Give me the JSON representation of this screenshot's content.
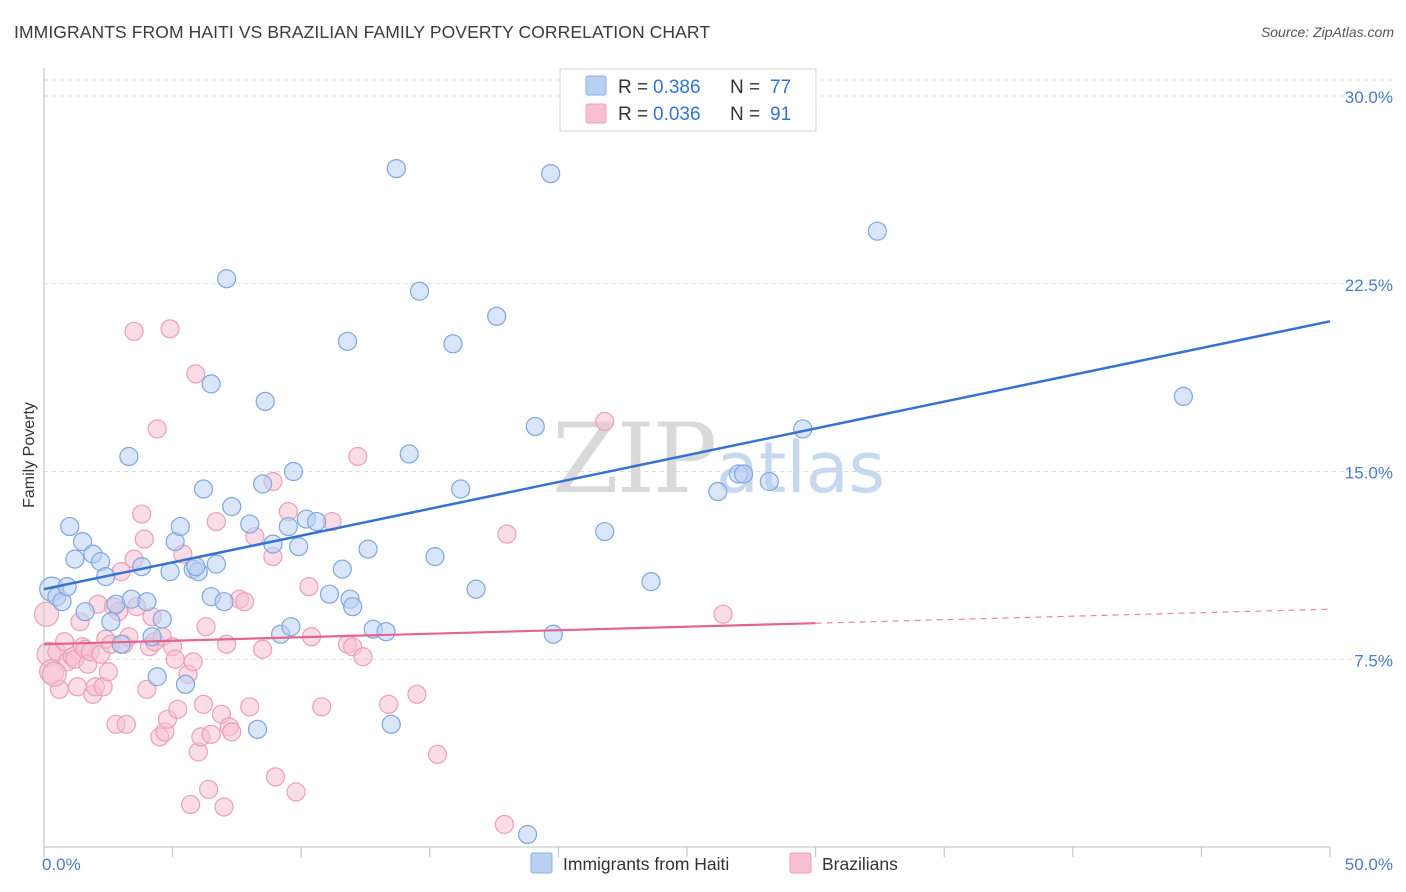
{
  "title": "IMMIGRANTS FROM HAITI VS BRAZILIAN FAMILY POVERTY CORRELATION CHART",
  "source": "Source: ZipAtlas.com",
  "watermark": {
    "zip": "ZIP",
    "atlas": "atlas"
  },
  "colors": {
    "blue": "#3573d1",
    "blue_fill": "#b9d0f2",
    "pink": "#e36592",
    "pink_fill": "#f6c0d2",
    "grid": "#dcdcdc",
    "tick_text": "#4a7cc9"
  },
  "legend": {
    "rows": [
      {
        "r_label": "R =",
        "r_value": "0.386",
        "n_label": "N =",
        "n_value": "77"
      },
      {
        "r_label": "R =",
        "r_value": "0.036",
        "n_label": "N =",
        "n_value": "91"
      }
    ]
  },
  "bottom_legend": [
    "Immigrants from Haiti",
    "Brazilians"
  ],
  "chart_data": {
    "type": "scatter",
    "ylabel": "Family Poverty",
    "xlabel": "",
    "xlim": [
      0,
      50
    ],
    "ylim": [
      0,
      31
    ],
    "x_tick_labels": [
      {
        "value": 0,
        "label": "0.0%"
      },
      {
        "value": 50,
        "label": "50.0%"
      }
    ],
    "y_tick_labels": [
      {
        "value": 7.5,
        "label": "7.5%"
      },
      {
        "value": 15.0,
        "label": "15.0%"
      },
      {
        "value": 22.5,
        "label": "22.5%"
      },
      {
        "value": 30.0,
        "label": "30.0%"
      }
    ],
    "grid": true,
    "legend_position": "top-center",
    "series": [
      {
        "name": "Immigrants from Haiti",
        "trend": {
          "x": [
            0,
            50
          ],
          "y": [
            10.3,
            21.0
          ],
          "dashed_from": null
        },
        "points": [
          [
            0.3,
            10.3
          ],
          [
            0.5,
            10.0
          ],
          [
            0.7,
            9.8
          ],
          [
            0.9,
            10.4
          ],
          [
            1.0,
            12.8
          ],
          [
            1.2,
            11.5
          ],
          [
            1.5,
            12.2
          ],
          [
            1.6,
            9.4
          ],
          [
            1.9,
            11.7
          ],
          [
            2.2,
            11.4
          ],
          [
            2.4,
            10.8
          ],
          [
            2.6,
            9.0
          ],
          [
            2.8,
            9.7
          ],
          [
            3.0,
            8.1
          ],
          [
            3.4,
            9.9
          ],
          [
            3.8,
            11.2
          ],
          [
            4.0,
            9.8
          ],
          [
            4.2,
            8.4
          ],
          [
            4.4,
            6.8
          ],
          [
            4.6,
            9.1
          ],
          [
            4.9,
            11.0
          ],
          [
            5.1,
            12.2
          ],
          [
            5.3,
            12.8
          ],
          [
            5.5,
            6.5
          ],
          [
            5.8,
            11.1
          ],
          [
            6.0,
            11.0
          ],
          [
            6.2,
            14.3
          ],
          [
            6.5,
            10.0
          ],
          [
            6.7,
            11.3
          ],
          [
            6.5,
            18.5
          ],
          [
            7.0,
            9.8
          ],
          [
            7.1,
            22.7
          ],
          [
            7.3,
            13.6
          ],
          [
            8.0,
            12.9
          ],
          [
            8.3,
            4.7
          ],
          [
            8.5,
            14.5
          ],
          [
            8.6,
            17.8
          ],
          [
            8.9,
            12.1
          ],
          [
            9.2,
            8.5
          ],
          [
            9.5,
            12.8
          ],
          [
            9.6,
            8.8
          ],
          [
            9.7,
            15.0
          ],
          [
            9.9,
            12.0
          ],
          [
            10.2,
            13.1
          ],
          [
            10.6,
            13.0
          ],
          [
            11.1,
            10.1
          ],
          [
            11.6,
            11.1
          ],
          [
            11.8,
            20.2
          ],
          [
            11.9,
            9.9
          ],
          [
            12.0,
            9.6
          ],
          [
            12.6,
            11.9
          ],
          [
            12.8,
            8.7
          ],
          [
            13.3,
            8.6
          ],
          [
            13.5,
            4.9
          ],
          [
            13.7,
            27.1
          ],
          [
            14.2,
            15.7
          ],
          [
            14.6,
            22.2
          ],
          [
            15.2,
            11.6
          ],
          [
            15.9,
            20.1
          ],
          [
            16.2,
            14.3
          ],
          [
            16.8,
            10.3
          ],
          [
            17.6,
            21.2
          ],
          [
            18.8,
            0.5
          ],
          [
            19.1,
            16.8
          ],
          [
            19.7,
            26.9
          ],
          [
            19.8,
            8.5
          ],
          [
            21.8,
            12.6
          ],
          [
            23.6,
            10.6
          ],
          [
            26.2,
            14.2
          ],
          [
            27.0,
            14.9
          ],
          [
            27.2,
            14.9
          ],
          [
            28.2,
            14.6
          ],
          [
            29.5,
            16.7
          ],
          [
            32.4,
            24.6
          ],
          [
            44.3,
            18.0
          ],
          [
            3.3,
            15.6
          ],
          [
            5.9,
            11.2
          ]
        ]
      },
      {
        "name": "Brazilians",
        "trend": {
          "x": [
            0,
            50
          ],
          "y": [
            8.1,
            9.5
          ],
          "dashed_from": 30
        },
        "points": [
          [
            0.1,
            9.3
          ],
          [
            0.2,
            7.7
          ],
          [
            0.3,
            7.0
          ],
          [
            0.5,
            7.8
          ],
          [
            0.6,
            6.3
          ],
          [
            0.8,
            8.2
          ],
          [
            0.9,
            7.4
          ],
          [
            1.1,
            7.6
          ],
          [
            1.2,
            7.5
          ],
          [
            1.3,
            6.4
          ],
          [
            1.4,
            9.0
          ],
          [
            1.5,
            8.0
          ],
          [
            1.6,
            7.9
          ],
          [
            1.7,
            7.3
          ],
          [
            1.8,
            7.8
          ],
          [
            1.9,
            6.1
          ],
          [
            2.0,
            6.4
          ],
          [
            2.1,
            9.7
          ],
          [
            2.2,
            7.7
          ],
          [
            2.3,
            6.4
          ],
          [
            2.4,
            8.3
          ],
          [
            2.5,
            7.0
          ],
          [
            2.6,
            8.1
          ],
          [
            2.7,
            9.6
          ],
          [
            2.8,
            4.9
          ],
          [
            2.9,
            9.4
          ],
          [
            3.0,
            11.0
          ],
          [
            3.1,
            8.1
          ],
          [
            3.2,
            4.9
          ],
          [
            3.3,
            8.4
          ],
          [
            3.5,
            20.6
          ],
          [
            3.5,
            11.5
          ],
          [
            3.6,
            9.6
          ],
          [
            3.8,
            13.3
          ],
          [
            3.9,
            12.3
          ],
          [
            4.0,
            6.3
          ],
          [
            4.1,
            8.0
          ],
          [
            4.2,
            9.2
          ],
          [
            4.3,
            8.2
          ],
          [
            4.4,
            16.7
          ],
          [
            4.5,
            4.4
          ],
          [
            4.6,
            8.4
          ],
          [
            4.7,
            4.6
          ],
          [
            4.8,
            5.1
          ],
          [
            4.9,
            20.7
          ],
          [
            5.0,
            8.0
          ],
          [
            5.1,
            7.5
          ],
          [
            5.2,
            5.5
          ],
          [
            5.4,
            11.7
          ],
          [
            5.6,
            6.9
          ],
          [
            5.7,
            1.7
          ],
          [
            5.8,
            7.4
          ],
          [
            5.9,
            18.9
          ],
          [
            6.0,
            3.8
          ],
          [
            6.1,
            4.4
          ],
          [
            6.2,
            5.7
          ],
          [
            6.3,
            8.8
          ],
          [
            6.4,
            2.3
          ],
          [
            6.5,
            4.5
          ],
          [
            6.7,
            13.0
          ],
          [
            6.9,
            5.3
          ],
          [
            7.0,
            1.6
          ],
          [
            7.1,
            8.1
          ],
          [
            7.2,
            4.8
          ],
          [
            7.3,
            4.6
          ],
          [
            7.6,
            9.9
          ],
          [
            7.8,
            9.8
          ],
          [
            8.0,
            5.6
          ],
          [
            8.2,
            12.4
          ],
          [
            8.5,
            7.9
          ],
          [
            8.9,
            11.6
          ],
          [
            8.9,
            14.6
          ],
          [
            9.0,
            2.8
          ],
          [
            9.5,
            13.4
          ],
          [
            9.8,
            2.2
          ],
          [
            10.3,
            10.4
          ],
          [
            10.4,
            8.4
          ],
          [
            10.8,
            5.6
          ],
          [
            11.2,
            13.0
          ],
          [
            11.8,
            8.1
          ],
          [
            12.0,
            8.0
          ],
          [
            12.2,
            15.6
          ],
          [
            12.4,
            7.6
          ],
          [
            13.4,
            5.7
          ],
          [
            14.5,
            6.1
          ],
          [
            15.3,
            3.7
          ],
          [
            17.9,
            0.9
          ],
          [
            18.0,
            12.5
          ],
          [
            21.8,
            17.0
          ],
          [
            26.4,
            9.3
          ],
          [
            0.4,
            6.9
          ]
        ]
      }
    ]
  }
}
